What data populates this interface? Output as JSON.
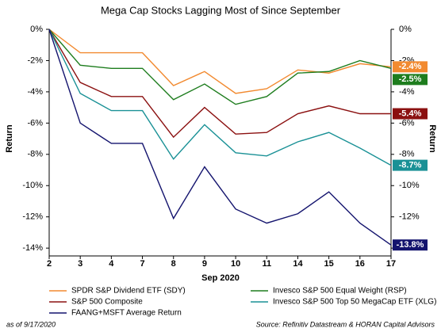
{
  "chart_data": {
    "type": "line",
    "title": "Mega Cap Stocks Lagging Most of Since September",
    "x_label": "Sep 2020",
    "y_label": "Return",
    "y2_label": "Return",
    "footnote": "as of 9/17/2020",
    "source": "Source: Refinitiv Datastream & HORAN Capital Advisors",
    "categories": [
      "2",
      "3",
      "4",
      "7",
      "8",
      "9",
      "10",
      "11",
      "14",
      "15",
      "16",
      "17"
    ],
    "ylim": [
      -14.5,
      0
    ],
    "yticks": [
      {
        "value": 0,
        "label": "0%"
      },
      {
        "value": -2,
        "label": "-2%"
      },
      {
        "value": -4,
        "label": "-4%"
      },
      {
        "value": -6,
        "label": "-6%"
      },
      {
        "value": -8,
        "label": "-8%"
      },
      {
        "value": -10,
        "label": "-10%"
      },
      {
        "value": -12,
        "label": "-12%"
      },
      {
        "value": -14,
        "label": "-14%"
      }
    ],
    "y2lim": [
      -14.5,
      0
    ],
    "y2ticks": [
      {
        "value": 0,
        "label": "0%"
      },
      {
        "value": -2,
        "label": "-2%"
      },
      {
        "value": -4,
        "label": "-4%"
      },
      {
        "value": -6,
        "label": "-6%"
      },
      {
        "value": -8,
        "label": "-8%"
      },
      {
        "value": -10,
        "label": "-10%"
      },
      {
        "value": -12,
        "label": "-12%"
      },
      {
        "value": -14,
        "label": "-14%"
      }
    ],
    "grid": false,
    "series": [
      {
        "name": "SPDR S&P Dividend ETF (SDY)",
        "color": "#f28a30",
        "values": [
          0,
          -1.5,
          -1.5,
          -1.5,
          -3.6,
          -2.7,
          -4.1,
          -3.8,
          -2.6,
          -2.8,
          -2.2,
          -2.4
        ],
        "value_labels": [
          null,
          null,
          null,
          null,
          null,
          null,
          null,
          null,
          null,
          null,
          null,
          "-2.4%"
        ]
      },
      {
        "name": "Invesco S&P 500 Equal Weight (RSP)",
        "color": "#1e7d1e",
        "values": [
          0,
          -2.3,
          -2.5,
          -2.5,
          -4.5,
          -3.5,
          -4.8,
          -4.3,
          -2.8,
          -2.7,
          -2.0,
          -2.5
        ],
        "value_labels": [
          null,
          null,
          null,
          null,
          null,
          null,
          null,
          null,
          null,
          null,
          null,
          "-2.5%"
        ]
      },
      {
        "name": "S&P 500 Composite",
        "color": "#8b1010",
        "values": [
          0,
          -3.4,
          -4.3,
          -4.3,
          -6.9,
          -5.0,
          -6.7,
          -6.6,
          -5.4,
          -4.9,
          -5.4,
          -5.4
        ],
        "value_labels": [
          null,
          null,
          null,
          null,
          null,
          null,
          null,
          null,
          null,
          null,
          null,
          "-5.4%"
        ]
      },
      {
        "name": "Invesco S&P 500 Top 50 MegaCap ETF (XLG)",
        "color": "#1a9196",
        "values": [
          0,
          -4.1,
          -5.2,
          -5.2,
          -8.3,
          -6.1,
          -7.9,
          -8.1,
          -7.2,
          -6.6,
          -7.6,
          -8.7
        ],
        "value_labels": [
          null,
          null,
          null,
          null,
          null,
          null,
          null,
          null,
          null,
          null,
          null,
          "-8.7%"
        ]
      },
      {
        "name": "FAANG+MSFT Average Return",
        "color": "#14146e",
        "values": [
          0,
          -6.0,
          -7.3,
          -7.3,
          -12.1,
          -8.8,
          -11.5,
          -12.4,
          -11.8,
          -10.4,
          -12.4,
          -13.8
        ],
        "value_labels": [
          null,
          null,
          null,
          null,
          null,
          null,
          null,
          null,
          null,
          null,
          null,
          "-13.8%"
        ]
      }
    ]
  }
}
